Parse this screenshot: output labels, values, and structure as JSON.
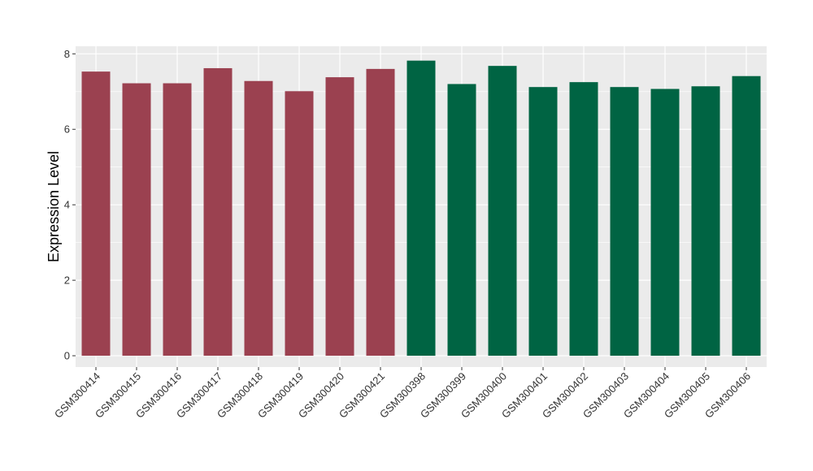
{
  "chart_data": {
    "type": "bar",
    "title": "",
    "xlabel": "",
    "ylabel": "Expression Level",
    "ylim": [
      -0.3,
      8.2
    ],
    "yticks": [
      0,
      2,
      4,
      6,
      8
    ],
    "grid": true,
    "legend": "none",
    "categories": [
      "GSM300414",
      "GSM300415",
      "GSM300416",
      "GSM300417",
      "GSM300418",
      "GSM300419",
      "GSM300420",
      "GSM300421",
      "GSM300398",
      "GSM300399",
      "GSM300400",
      "GSM300401",
      "GSM300402",
      "GSM300403",
      "GSM300404",
      "GSM300405",
      "GSM300406"
    ],
    "values": [
      7.53,
      7.22,
      7.22,
      7.62,
      7.28,
      7.01,
      7.38,
      7.6,
      7.82,
      7.2,
      7.68,
      7.12,
      7.25,
      7.12,
      7.07,
      7.14,
      7.41
    ],
    "bar_colors": [
      "#9b4150",
      "#9b4150",
      "#9b4150",
      "#9b4150",
      "#9b4150",
      "#9b4150",
      "#9b4150",
      "#9b4150",
      "#006443",
      "#006443",
      "#006443",
      "#006443",
      "#006443",
      "#006443",
      "#006443",
      "#006443",
      "#006443"
    ],
    "panel_color": "#ebebeb",
    "grid_color": "#ffffff"
  }
}
